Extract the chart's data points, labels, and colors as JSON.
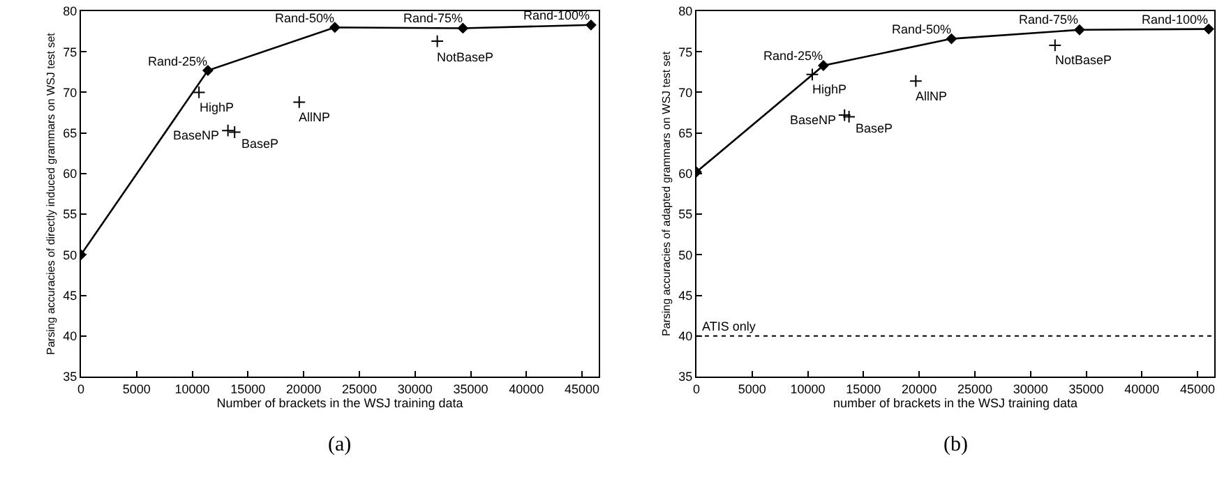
{
  "chart_data": [
    {
      "type": "line",
      "xlabel": "Number of brackets in the WSJ training data",
      "ylabel": "Parsing accuracies of directly induced grammars on WSJ test set",
      "xlim": [
        0,
        46500
      ],
      "ylim": [
        35,
        80
      ],
      "xticks": [
        0,
        5000,
        10000,
        15000,
        20000,
        25000,
        30000,
        35000,
        40000,
        45000
      ],
      "yticks": [
        35,
        40,
        45,
        50,
        55,
        60,
        65,
        70,
        75,
        80
      ],
      "grid": false,
      "series": [
        {
          "color": "#000000",
          "marker": "diamond",
          "x": [
            0,
            11400,
            22800,
            34300,
            45800
          ],
          "values": [
            50,
            72.7,
            78,
            77.9,
            78.3
          ]
        },
        {
          "type": "scatter",
          "color": "#000000",
          "marker": "cross",
          "x": [
            10600,
            13200,
            13800,
            19600,
            32000
          ],
          "values": [
            70,
            65.3,
            65.1,
            68.8,
            76.3
          ]
        }
      ],
      "annotations": [
        {
          "text": "Rand-25%",
          "x": 11400,
          "y": 72.7
        },
        {
          "text": "Rand-50%",
          "x": 22800,
          "y": 78
        },
        {
          "text": "Rand-75%",
          "x": 34300,
          "y": 77.9
        },
        {
          "text": "Rand-100%",
          "x": 45800,
          "y": 78.3
        },
        {
          "text": "HighP",
          "x": 10600,
          "y": 70
        },
        {
          "text": "BaseNP",
          "x": 13200,
          "y": 65.3
        },
        {
          "text": "BaseP",
          "x": 13800,
          "y": 65.1
        },
        {
          "text": "AllNP",
          "x": 19600,
          "y": 68.8
        },
        {
          "text": "NotBaseP",
          "x": 32000,
          "y": 76.3
        },
        "(a)"
      ]
    },
    {
      "type": "line",
      "xlabel": "number of brackets in the WSJ training data",
      "ylabel": "Parsing accuracies of adapted grammars on WSJ test set",
      "xlim": [
        0,
        46500
      ],
      "ylim": [
        35,
        80
      ],
      "xticks": [
        0,
        5000,
        10000,
        15000,
        20000,
        25000,
        30000,
        35000,
        40000,
        45000
      ],
      "yticks": [
        35,
        40,
        45,
        50,
        55,
        60,
        65,
        70,
        75,
        80
      ],
      "grid": false,
      "series": [
        {
          "color": "#000000",
          "marker": "diamond",
          "x": [
            0,
            11400,
            22900,
            34400,
            46000
          ],
          "values": [
            60.2,
            73.3,
            76.6,
            77.7,
            77.8
          ]
        },
        {
          "type": "scatter",
          "color": "#000000",
          "marker": "cross",
          "x": [
            10400,
            13300,
            13700,
            19700,
            32200
          ],
          "values": [
            72.2,
            67.2,
            67,
            71.4,
            75.8
          ]
        }
      ],
      "ref_lines": [
        {
          "axis": "y",
          "value": 40,
          "label": "ATIS only",
          "line_style": "dotted",
          "color": "#000000"
        }
      ],
      "annotations": [
        {
          "text": "Rand-25%",
          "x": 11400,
          "y": 73.3
        },
        {
          "text": "Rand-50%",
          "x": 22900,
          "y": 76.6
        },
        {
          "text": "Rand-75%",
          "x": 34400,
          "y": 77.7
        },
        {
          "text": "Rand-100%",
          "x": 46000,
          "y": 77.8
        },
        {
          "text": "HighP",
          "x": 10400,
          "y": 72.2
        },
        {
          "text": "BaseNP",
          "x": 13300,
          "y": 67.2
        },
        {
          "text": "BaseP",
          "x": 13700,
          "y": 67
        },
        {
          "text": "AllNP",
          "x": 19700,
          "y": 71.4
        },
        {
          "text": "NotBaseP",
          "x": 32200,
          "y": 75.8
        },
        "(b)"
      ]
    }
  ]
}
